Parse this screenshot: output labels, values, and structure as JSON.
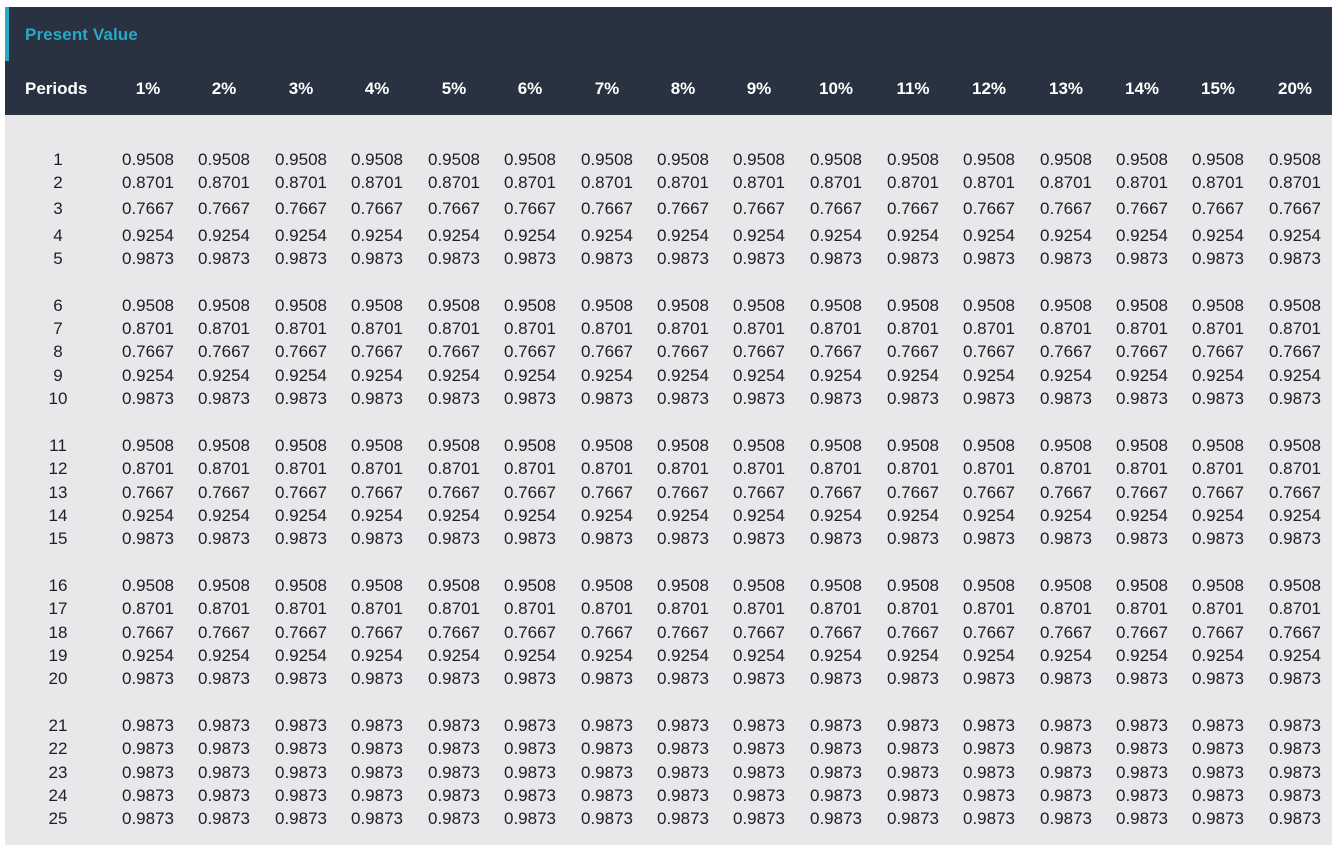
{
  "title": "Present Value",
  "columns": {
    "periods_label": "Periods",
    "rates": [
      "1%",
      "2%",
      "3%",
      "4%",
      "5%",
      "6%",
      "7%",
      "8%",
      "9%",
      "10%",
      "11%",
      "12%",
      "13%",
      "14%",
      "15%",
      "20%"
    ]
  },
  "rows": [
    {
      "period": "1",
      "values": [
        "0.9508",
        "0.9508",
        "0.9508",
        "0.9508",
        "0.9508",
        "0.9508",
        "0.9508",
        "0.9508",
        "0.9508",
        "0.9508",
        "0.9508",
        "0.9508",
        "0.9508",
        "0.9508",
        "0.9508",
        "0.9508"
      ]
    },
    {
      "period": "2",
      "values": [
        "0.8701",
        "0.8701",
        "0.8701",
        "0.8701",
        "0.8701",
        "0.8701",
        "0.8701",
        "0.8701",
        "0.8701",
        "0.8701",
        "0.8701",
        "0.8701",
        "0.8701",
        "0.8701",
        "0.8701",
        "0.8701"
      ]
    },
    {
      "period": "3",
      "values": [
        "0.7667",
        "0.7667",
        "0.7667",
        "0.7667",
        "0.7667",
        "0.7667",
        "0.7667",
        "0.7667",
        "0.7667",
        "0.7667",
        "0.7667",
        "0.7667",
        "0.7667",
        "0.7667",
        "0.7667",
        "0.7667"
      ]
    },
    {
      "period": "4",
      "values": [
        "0.9254",
        "0.9254",
        "0.9254",
        "0.9254",
        "0.9254",
        "0.9254",
        "0.9254",
        "0.9254",
        "0.9254",
        "0.9254",
        "0.9254",
        "0.9254",
        "0.9254",
        "0.9254",
        "0.9254",
        "0.9254"
      ]
    },
    {
      "period": "5",
      "values": [
        "0.9873",
        "0.9873",
        "0.9873",
        "0.9873",
        "0.9873",
        "0.9873",
        "0.9873",
        "0.9873",
        "0.9873",
        "0.9873",
        "0.9873",
        "0.9873",
        "0.9873",
        "0.9873",
        "0.9873",
        "0.9873"
      ]
    },
    {
      "period": "6",
      "values": [
        "0.9508",
        "0.9508",
        "0.9508",
        "0.9508",
        "0.9508",
        "0.9508",
        "0.9508",
        "0.9508",
        "0.9508",
        "0.9508",
        "0.9508",
        "0.9508",
        "0.9508",
        "0.9508",
        "0.9508",
        "0.9508"
      ]
    },
    {
      "period": "7",
      "values": [
        "0.8701",
        "0.8701",
        "0.8701",
        "0.8701",
        "0.8701",
        "0.8701",
        "0.8701",
        "0.8701",
        "0.8701",
        "0.8701",
        "0.8701",
        "0.8701",
        "0.8701",
        "0.8701",
        "0.8701",
        "0.8701"
      ]
    },
    {
      "period": "8",
      "values": [
        "0.7667",
        "0.7667",
        "0.7667",
        "0.7667",
        "0.7667",
        "0.7667",
        "0.7667",
        "0.7667",
        "0.7667",
        "0.7667",
        "0.7667",
        "0.7667",
        "0.7667",
        "0.7667",
        "0.7667",
        "0.7667"
      ]
    },
    {
      "period": "9",
      "values": [
        "0.9254",
        "0.9254",
        "0.9254",
        "0.9254",
        "0.9254",
        "0.9254",
        "0.9254",
        "0.9254",
        "0.9254",
        "0.9254",
        "0.9254",
        "0.9254",
        "0.9254",
        "0.9254",
        "0.9254",
        "0.9254"
      ]
    },
    {
      "period": "10",
      "values": [
        "0.9873",
        "0.9873",
        "0.9873",
        "0.9873",
        "0.9873",
        "0.9873",
        "0.9873",
        "0.9873",
        "0.9873",
        "0.9873",
        "0.9873",
        "0.9873",
        "0.9873",
        "0.9873",
        "0.9873",
        "0.9873"
      ]
    },
    {
      "period": "11",
      "values": [
        "0.9508",
        "0.9508",
        "0.9508",
        "0.9508",
        "0.9508",
        "0.9508",
        "0.9508",
        "0.9508",
        "0.9508",
        "0.9508",
        "0.9508",
        "0.9508",
        "0.9508",
        "0.9508",
        "0.9508",
        "0.9508"
      ]
    },
    {
      "period": "12",
      "values": [
        "0.8701",
        "0.8701",
        "0.8701",
        "0.8701",
        "0.8701",
        "0.8701",
        "0.8701",
        "0.8701",
        "0.8701",
        "0.8701",
        "0.8701",
        "0.8701",
        "0.8701",
        "0.8701",
        "0.8701",
        "0.8701"
      ]
    },
    {
      "period": "13",
      "values": [
        "0.7667",
        "0.7667",
        "0.7667",
        "0.7667",
        "0.7667",
        "0.7667",
        "0.7667",
        "0.7667",
        "0.7667",
        "0.7667",
        "0.7667",
        "0.7667",
        "0.7667",
        "0.7667",
        "0.7667",
        "0.7667"
      ]
    },
    {
      "period": "14",
      "values": [
        "0.9254",
        "0.9254",
        "0.9254",
        "0.9254",
        "0.9254",
        "0.9254",
        "0.9254",
        "0.9254",
        "0.9254",
        "0.9254",
        "0.9254",
        "0.9254",
        "0.9254",
        "0.9254",
        "0.9254",
        "0.9254"
      ]
    },
    {
      "period": "15",
      "values": [
        "0.9873",
        "0.9873",
        "0.9873",
        "0.9873",
        "0.9873",
        "0.9873",
        "0.9873",
        "0.9873",
        "0.9873",
        "0.9873",
        "0.9873",
        "0.9873",
        "0.9873",
        "0.9873",
        "0.9873",
        "0.9873"
      ]
    },
    {
      "period": "16",
      "values": [
        "0.9508",
        "0.9508",
        "0.9508",
        "0.9508",
        "0.9508",
        "0.9508",
        "0.9508",
        "0.9508",
        "0.9508",
        "0.9508",
        "0.9508",
        "0.9508",
        "0.9508",
        "0.9508",
        "0.9508",
        "0.9508"
      ]
    },
    {
      "period": "17",
      "values": [
        "0.8701",
        "0.8701",
        "0.8701",
        "0.8701",
        "0.8701",
        "0.8701",
        "0.8701",
        "0.8701",
        "0.8701",
        "0.8701",
        "0.8701",
        "0.8701",
        "0.8701",
        "0.8701",
        "0.8701",
        "0.8701"
      ]
    },
    {
      "period": "18",
      "values": [
        "0.7667",
        "0.7667",
        "0.7667",
        "0.7667",
        "0.7667",
        "0.7667",
        "0.7667",
        "0.7667",
        "0.7667",
        "0.7667",
        "0.7667",
        "0.7667",
        "0.7667",
        "0.7667",
        "0.7667",
        "0.7667"
      ]
    },
    {
      "period": "19",
      "values": [
        "0.9254",
        "0.9254",
        "0.9254",
        "0.9254",
        "0.9254",
        "0.9254",
        "0.9254",
        "0.9254",
        "0.9254",
        "0.9254",
        "0.9254",
        "0.9254",
        "0.9254",
        "0.9254",
        "0.9254",
        "0.9254"
      ]
    },
    {
      "period": "20",
      "values": [
        "0.9873",
        "0.9873",
        "0.9873",
        "0.9873",
        "0.9873",
        "0.9873",
        "0.9873",
        "0.9873",
        "0.9873",
        "0.9873",
        "0.9873",
        "0.9873",
        "0.9873",
        "0.9873",
        "0.9873",
        "0.9873"
      ]
    },
    {
      "period": "21",
      "values": [
        "0.9873",
        "0.9873",
        "0.9873",
        "0.9873",
        "0.9873",
        "0.9873",
        "0.9873",
        "0.9873",
        "0.9873",
        "0.9873",
        "0.9873",
        "0.9873",
        "0.9873",
        "0.9873",
        "0.9873",
        "0.9873"
      ]
    },
    {
      "period": "22",
      "values": [
        "0.9873",
        "0.9873",
        "0.9873",
        "0.9873",
        "0.9873",
        "0.9873",
        "0.9873",
        "0.9873",
        "0.9873",
        "0.9873",
        "0.9873",
        "0.9873",
        "0.9873",
        "0.9873",
        "0.9873",
        "0.9873"
      ]
    },
    {
      "period": "23",
      "values": [
        "0.9873",
        "0.9873",
        "0.9873",
        "0.9873",
        "0.9873",
        "0.9873",
        "0.9873",
        "0.9873",
        "0.9873",
        "0.9873",
        "0.9873",
        "0.9873",
        "0.9873",
        "0.9873",
        "0.9873",
        "0.9873"
      ]
    },
    {
      "period": "24",
      "values": [
        "0.9873",
        "0.9873",
        "0.9873",
        "0.9873",
        "0.9873",
        "0.9873",
        "0.9873",
        "0.9873",
        "0.9873",
        "0.9873",
        "0.9873",
        "0.9873",
        "0.9873",
        "0.9873",
        "0.9873",
        "0.9873"
      ]
    },
    {
      "period": "25",
      "values": [
        "0.9873",
        "0.9873",
        "0.9873",
        "0.9873",
        "0.9873",
        "0.9873",
        "0.9873",
        "0.9873",
        "0.9873",
        "0.9873",
        "0.9873",
        "0.9873",
        "0.9873",
        "0.9873",
        "0.9873",
        "0.9873"
      ]
    }
  ],
  "colors": {
    "header_bg": "#293241",
    "accent": "#27a9c6",
    "body_bg": "#e8e8eb",
    "header_text": "#ffffff",
    "body_text": "#1e1e22"
  }
}
